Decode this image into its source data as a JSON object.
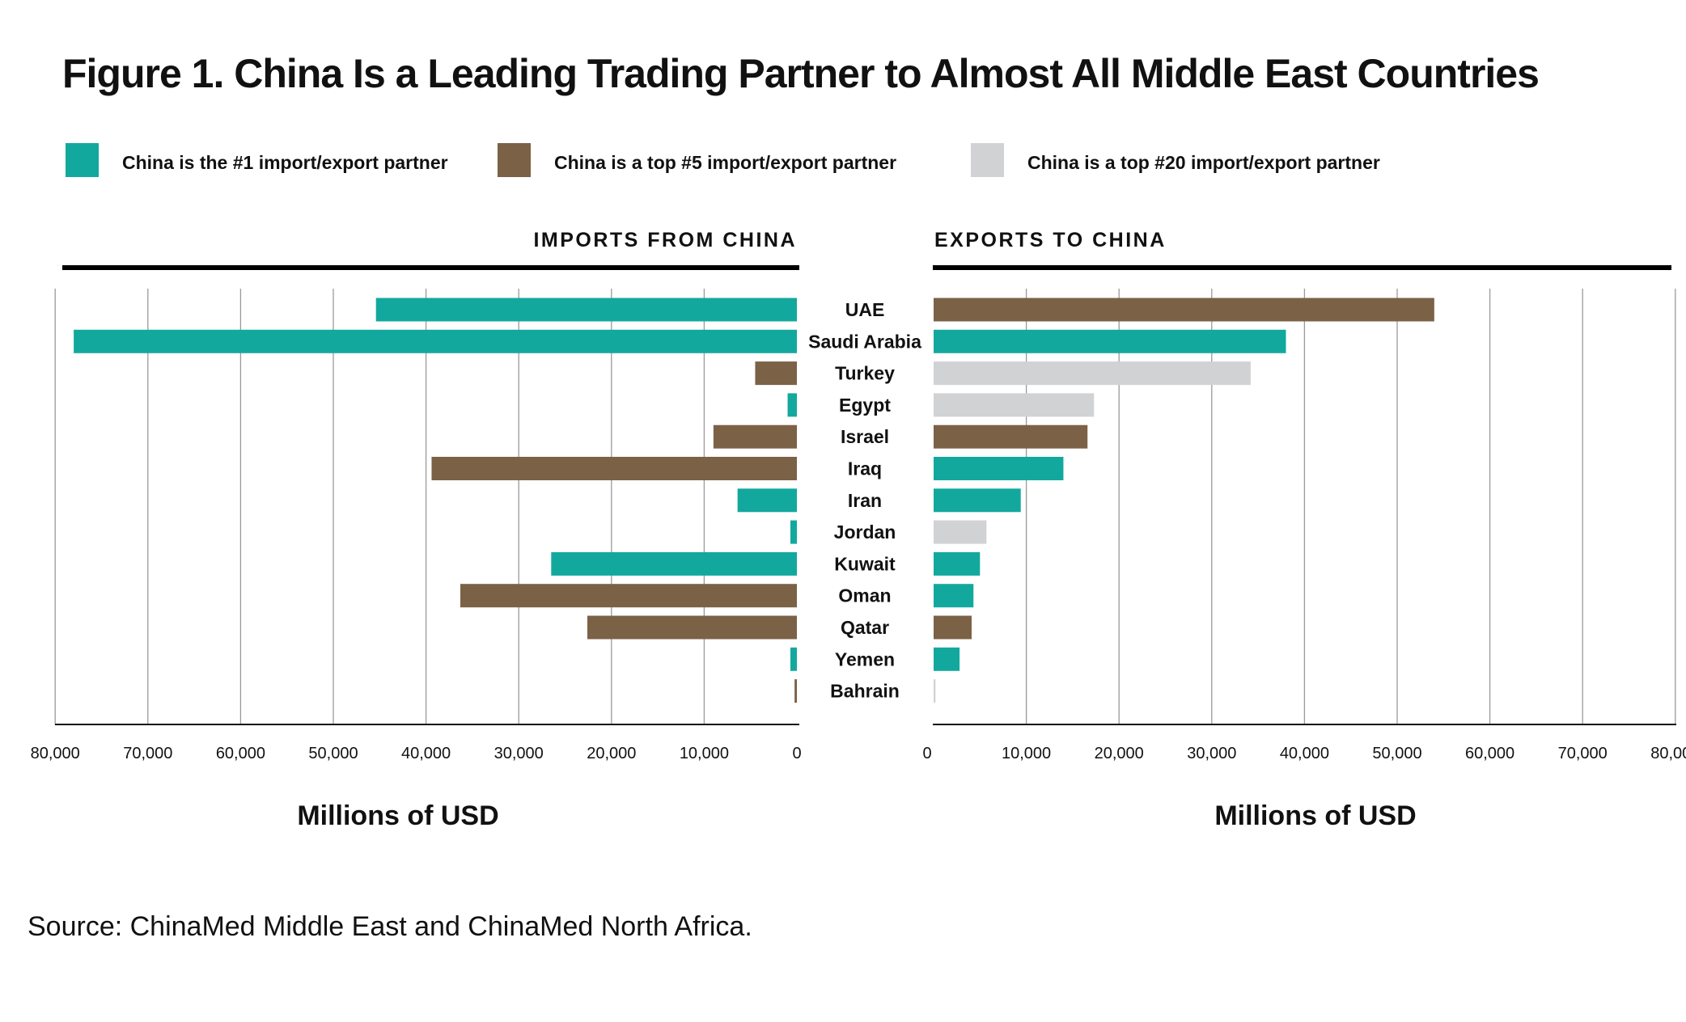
{
  "chart_data": [
    {
      "type": "bar",
      "title": "Figure 1. China Is a Leading Trading Partner to Almost All Middle East Countries",
      "panel": "IMPORTS FROM CHINA",
      "orientation": "horizontal",
      "direction": "leftward",
      "xlabel": "Millions of USD",
      "xlim": [
        0,
        80000
      ],
      "xticks": [
        "0",
        "10,000",
        "20,000",
        "30,000",
        "40,000",
        "50,000",
        "60,000",
        "70,000",
        "80,000"
      ],
      "categories": [
        "UAE",
        "Saudi Arabia",
        "Turkey",
        "Egypt",
        "Israel",
        "Iraq",
        "Iran",
        "Jordan",
        "Kuwait",
        "Oman",
        "Qatar",
        "Yemen",
        "Bahrain"
      ],
      "values": [
        45400,
        78000,
        4500,
        1000,
        9000,
        39400,
        6400,
        700,
        26500,
        36300,
        22600,
        700,
        250
      ],
      "partner_rank": [
        "1",
        "1",
        "5",
        "1",
        "5",
        "5",
        "1",
        "1",
        "1",
        "5",
        "5",
        "1",
        "5"
      ],
      "grid": true
    },
    {
      "type": "bar",
      "panel": "EXPORTS TO CHINA",
      "orientation": "horizontal",
      "direction": "rightward",
      "xlabel": "Millions of USD",
      "xlim": [
        0,
        80000
      ],
      "xticks": [
        "0",
        "10,000",
        "20,000",
        "30,000",
        "40,000",
        "50,000",
        "60,000",
        "70,000",
        "80,000"
      ],
      "categories": [
        "UAE",
        "Saudi Arabia",
        "Turkey",
        "Egypt",
        "Israel",
        "Iraq",
        "Iran",
        "Jordan",
        "Kuwait",
        "Oman",
        "Qatar",
        "Yemen",
        "Bahrain"
      ],
      "values": [
        54000,
        38000,
        34200,
        17300,
        16600,
        14000,
        9400,
        5700,
        5000,
        4300,
        4100,
        2800,
        200
      ],
      "partner_rank": [
        "5",
        "1",
        "20",
        "20",
        "5",
        "1",
        "1",
        "20",
        "1",
        "1",
        "5",
        "1",
        "20"
      ],
      "grid": true
    }
  ],
  "legend": [
    {
      "key": "1",
      "label": "China is the #1 import/export partner",
      "color": "#13a89e"
    },
    {
      "key": "5",
      "label": "China is a top #5 import/export partner",
      "color": "#7b6146"
    },
    {
      "key": "20",
      "label": "China is a top #20 import/export partner",
      "color": "#d1d2d4"
    }
  ],
  "source": "Source: ChinaMed Middle East and ChinaMed North Africa."
}
